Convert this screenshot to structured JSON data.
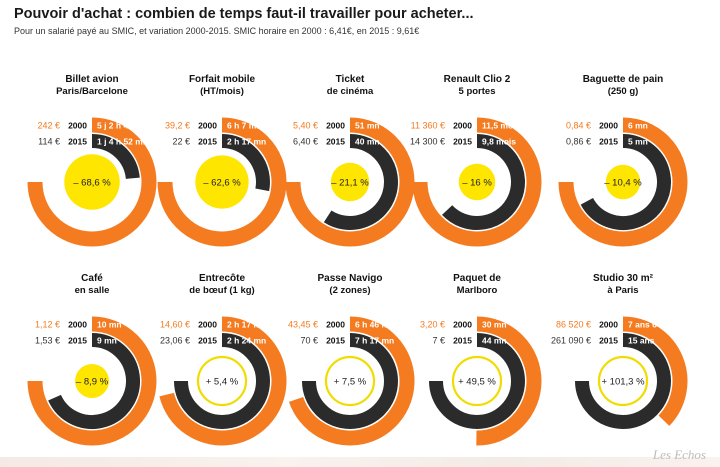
{
  "header": {
    "title": "Pouvoir d'achat : combien de temps faut-il travailler pour acheter...",
    "subtitle": "Pour un salarié payé au SMIC, et variation 2000-2015. SMIC horaire en 2000 : 6,41€, en 2015 : 9,61€"
  },
  "watermark": "Les Echos",
  "colors": {
    "orange": "#F47B20",
    "dark": "#2b2b2b",
    "yellow": "#FFE600",
    "yellow_outline": "#F2DC00",
    "price_2000": "#F47B20",
    "price_2015": "#333333"
  },
  "chart_data": [
    {
      "type": "donut",
      "title": "Billet avion",
      "subtitle": "Paris/Barcelone",
      "year_labels": [
        "2000",
        "2015"
      ],
      "price_2000": "242 €",
      "price_2015": "114 €",
      "time_2000": "5 j 2 h 45 mn",
      "time_2015": "1 j 4 h 52 mn",
      "change": "– 68,6 %",
      "change_value": -68.6
    },
    {
      "type": "donut",
      "title": "Forfait mobile",
      "subtitle": "(HT/mois)",
      "year_labels": [
        "2000",
        "2015"
      ],
      "price_2000": "39,2 €",
      "price_2015": "22 €",
      "time_2000": "6 h 7 mn",
      "time_2015": "2 h 17 mn",
      "change": "– 62,6 %",
      "change_value": -62.6
    },
    {
      "type": "donut",
      "title": "Ticket",
      "subtitle": "de cinéma",
      "year_labels": [
        "2000",
        "2015"
      ],
      "price_2000": "5,40 €",
      "price_2015": "6,40 €",
      "time_2000": "51 mn",
      "time_2015": "40 mn",
      "change": "– 21,1 %",
      "change_value": -21.1
    },
    {
      "type": "donut",
      "title": "Renault Clio 2",
      "subtitle": "5 portes",
      "year_labels": [
        "2000",
        "2015"
      ],
      "price_2000": "11 360 €",
      "price_2015": "14 300 €",
      "time_2000": "11,5 mois",
      "time_2015": "9,8 mois",
      "change": "– 16 %",
      "change_value": -16.0
    },
    {
      "type": "donut",
      "title": "Baguette de pain",
      "subtitle": "(250 g)",
      "year_labels": [
        "2000",
        "2015"
      ],
      "price_2000": "0,84 €",
      "price_2015": "0,86 €",
      "time_2000": "6 mn",
      "time_2015": "5 mn",
      "change": "– 10,4 %",
      "change_value": -10.4
    },
    {
      "type": "donut",
      "title": "Café",
      "subtitle": "en salle",
      "year_labels": [
        "2000",
        "2015"
      ],
      "price_2000": "1,12 €",
      "price_2015": "1,53 €",
      "time_2000": "10 mn",
      "time_2015": "9 mn",
      "change": "– 8,9 %",
      "change_value": -8.9
    },
    {
      "type": "donut",
      "title": "Entrecôte",
      "subtitle": "de bœuf (1 kg)",
      "year_labels": [
        "2000",
        "2015"
      ],
      "price_2000": "14,60 €",
      "price_2015": "23,06 €",
      "time_2000": "2 h 17 mn",
      "time_2015": "2 h 24 mn",
      "change": "+ 5,4 %",
      "change_value": 5.4
    },
    {
      "type": "donut",
      "title": "Passe Navigo",
      "subtitle": "(2 zones)",
      "year_labels": [
        "2000",
        "2015"
      ],
      "price_2000": "43,45 €",
      "price_2015": "70 €",
      "time_2000": "6 h 46 mn",
      "time_2015": "7 h 17 mn",
      "change": "+ 7,5 %",
      "change_value": 7.5
    },
    {
      "type": "donut",
      "title": "Paquet de",
      "subtitle": "Marlboro",
      "year_labels": [
        "2000",
        "2015"
      ],
      "price_2000": "3,20 €",
      "price_2015": "7 €",
      "time_2000": "30 mn",
      "time_2015": "44 mn",
      "change": "+ 49,5 %",
      "change_value": 49.5
    },
    {
      "type": "donut",
      "title": "Studio 30 m²",
      "subtitle": "à Paris",
      "year_labels": [
        "2000",
        "2015"
      ],
      "price_2000": "86 520 €",
      "price_2015": "261 090 €",
      "time_2000": "7 ans 6 mois",
      "time_2015": "15 ans",
      "change": "+ 101,3 %",
      "change_value": 101.3
    }
  ]
}
